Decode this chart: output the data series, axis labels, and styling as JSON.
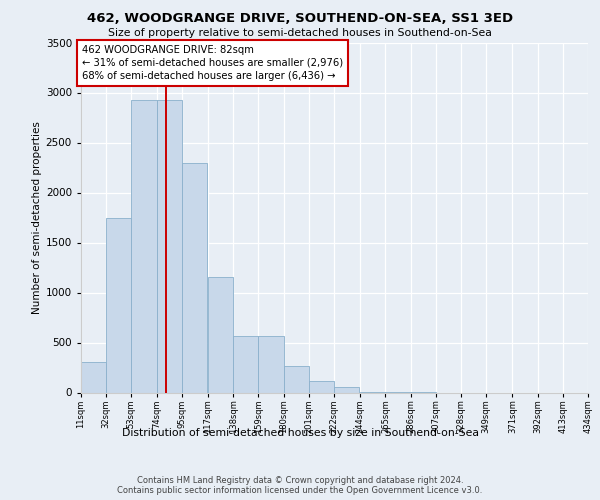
{
  "title": "462, WOODGRANGE DRIVE, SOUTHEND-ON-SEA, SS1 3ED",
  "subtitle": "Size of property relative to semi-detached houses in Southend-on-Sea",
  "xlabel": "Distribution of semi-detached houses by size in Southend-on-Sea",
  "ylabel": "Number of semi-detached properties",
  "bar_color": "#c8d8ea",
  "bar_edge_color": "#8ab0cc",
  "property_line_x": 82,
  "property_line_color": "#cc0000",
  "annotation_text": "462 WOODGRANGE DRIVE: 82sqm\n← 31% of semi-detached houses are smaller (2,976)\n68% of semi-detached houses are larger (6,436) →",
  "annotation_box_facecolor": "#ffffff",
  "annotation_box_edge": "#cc0000",
  "bin_edges": [
    11,
    32,
    53,
    74,
    95,
    117,
    138,
    159,
    180,
    201,
    222,
    244,
    265,
    286,
    307,
    328,
    349,
    371,
    392,
    413,
    434
  ],
  "bin_counts": [
    310,
    1750,
    2930,
    2930,
    2300,
    1160,
    565,
    565,
    265,
    120,
    55,
    9,
    4,
    1,
    0,
    0,
    0,
    0,
    0,
    0
  ],
  "ylim": [
    0,
    3500
  ],
  "yticks": [
    0,
    500,
    1000,
    1500,
    2000,
    2500,
    3000,
    3500
  ],
  "tick_labels": [
    "11sqm",
    "32sqm",
    "53sqm",
    "74sqm",
    "95sqm",
    "117sqm",
    "138sqm",
    "159sqm",
    "180sqm",
    "201sqm",
    "222sqm",
    "244sqm",
    "265sqm",
    "286sqm",
    "307sqm",
    "328sqm",
    "349sqm",
    "371sqm",
    "392sqm",
    "413sqm",
    "434sqm"
  ],
  "footer_line1": "Contains HM Land Registry data © Crown copyright and database right 2024.",
  "footer_line2": "Contains public sector information licensed under the Open Government Licence v3.0.",
  "background_color": "#e8eef5",
  "grid_color": "#ffffff",
  "spine_color": "#cccccc"
}
